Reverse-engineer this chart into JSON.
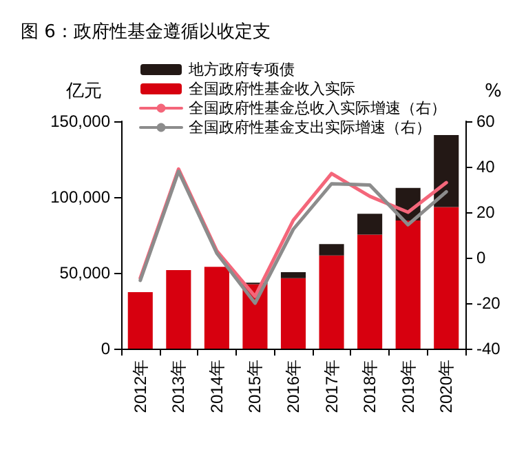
{
  "chart_data": {
    "type": "bar",
    "title": "图 6：政府性基金遵循以收定支",
    "ylabel": "亿元",
    "y2label": "%",
    "categories": [
      "2012年",
      "2013年",
      "2014年",
      "2015年",
      "2016年",
      "2017年",
      "2018年",
      "2019年",
      "2020年"
    ],
    "stacked": true,
    "series": [
      {
        "name": "全国政府性基金收入实际",
        "color": "#d7000f",
        "values": [
          37300,
          51800,
          54000,
          42500,
          46500,
          61500,
          75200,
          84500,
          93400
        ]
      },
      {
        "name": "地方政府专项债",
        "color": "#231815",
        "values": [
          null,
          null,
          null,
          1000,
          4000,
          7500,
          13800,
          21500,
          47500
        ]
      },
      {
        "name": "全国政府性基金总收入实际增速（右）",
        "type": "line",
        "axis": "y2",
        "color": "#f4667a",
        "values": [
          -9,
          39,
          3,
          -17,
          16.5,
          37,
          27,
          20,
          33
        ]
      },
      {
        "name": "全国政府性基金支出实际增速（右）",
        "type": "line",
        "axis": "y2",
        "color": "#8c8c8c",
        "values": [
          -10,
          38,
          2,
          -20,
          12.5,
          32.5,
          32,
          14.5,
          29
        ]
      }
    ],
    "ylim": [
      0,
      150000
    ],
    "yticks": [
      0,
      {
        "value": 50000,
        "label": "50,000"
      },
      {
        "value": 100000,
        "label": "100,000"
      },
      {
        "value": 150000,
        "label": "150,000"
      }
    ],
    "y2lim": [
      -40,
      60
    ],
    "y2ticks": [
      -40,
      -20,
      0,
      20,
      40,
      60
    ],
    "legend": "top",
    "grid": false,
    "marker": "none",
    "line_style": "solid"
  }
}
